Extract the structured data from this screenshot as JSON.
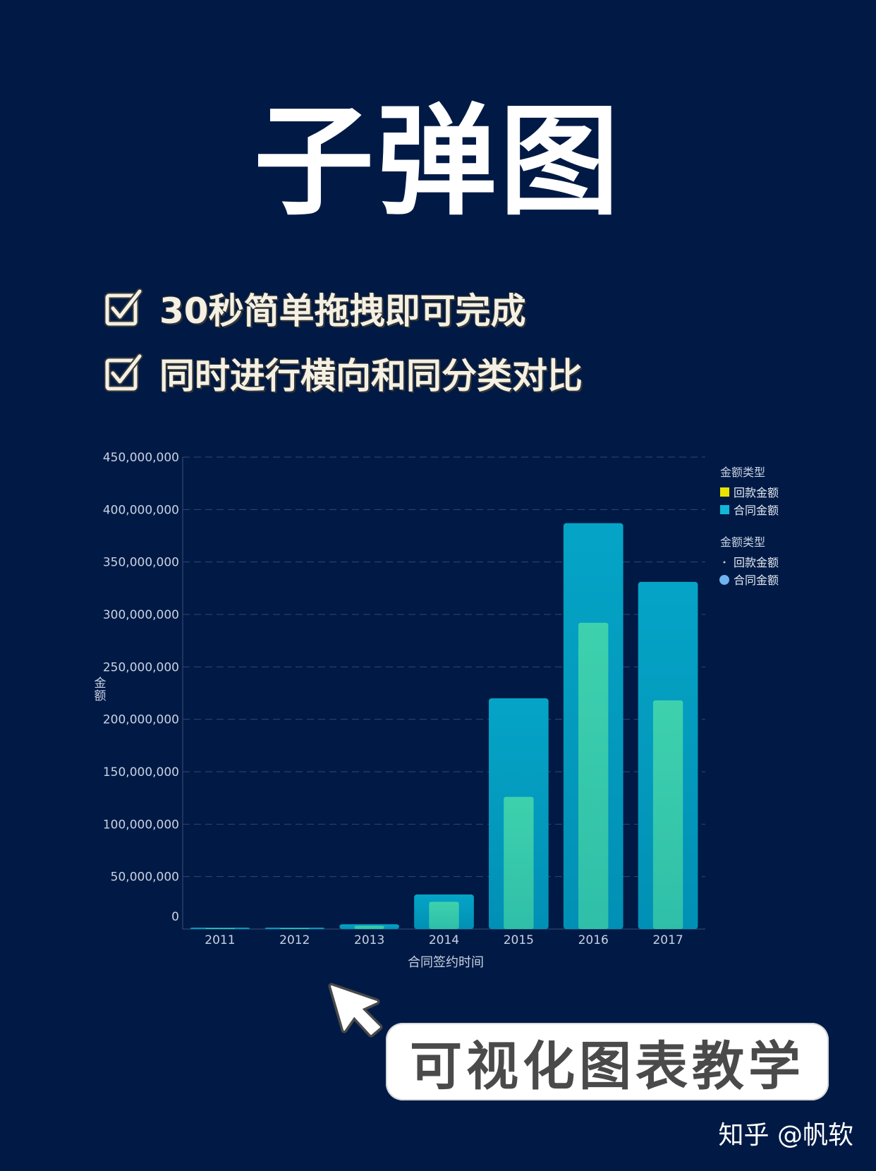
{
  "header": {
    "title": "子弹图"
  },
  "features": [
    {
      "text": "30秒简单拖拽即可完成"
    },
    {
      "text": "同时进行横向和同分类对比"
    }
  ],
  "chart_data": {
    "type": "bar",
    "subtype": "bullet",
    "categories": [
      "2011",
      "2012",
      "2013",
      "2014",
      "2015",
      "2016",
      "2017"
    ],
    "series": [
      {
        "name": "合同金额",
        "values": [
          300000,
          500000,
          4500000,
          33000000,
          220000000,
          387000000,
          331000000
        ],
        "color": "#0aa0c4"
      },
      {
        "name": "回款金额",
        "values": [
          200000,
          300000,
          3000000,
          26000000,
          126000000,
          292000000,
          218000000
        ],
        "color": "#36c7a6"
      }
    ],
    "xlabel": "合同签约时间",
    "ylabel": "金额",
    "ylim": [
      0,
      450000000
    ],
    "yticks": [
      "0",
      "50,000,000",
      "100,000,000",
      "150,000,000",
      "200,000,000",
      "250,000,000",
      "300,000,000",
      "350,000,000",
      "400,000,000",
      "450,000,000"
    ],
    "grid": true,
    "legend_position": "right",
    "legends": [
      {
        "title": "金额类型",
        "items": [
          {
            "label": "回款金额",
            "marker": "square",
            "color": "#e8e400"
          },
          {
            "label": "合同金额",
            "marker": "square",
            "color": "#12b7d8"
          }
        ]
      },
      {
        "title": "金额类型",
        "items": [
          {
            "label": "回款金额",
            "marker": "dot-small",
            "color": "#c0c8d8"
          },
          {
            "label": "合同金额",
            "marker": "circle",
            "color": "#6fb3f0"
          }
        ]
      }
    ]
  },
  "footer": {
    "label": "可视化图表教学",
    "watermark": "知乎 @帆软"
  }
}
